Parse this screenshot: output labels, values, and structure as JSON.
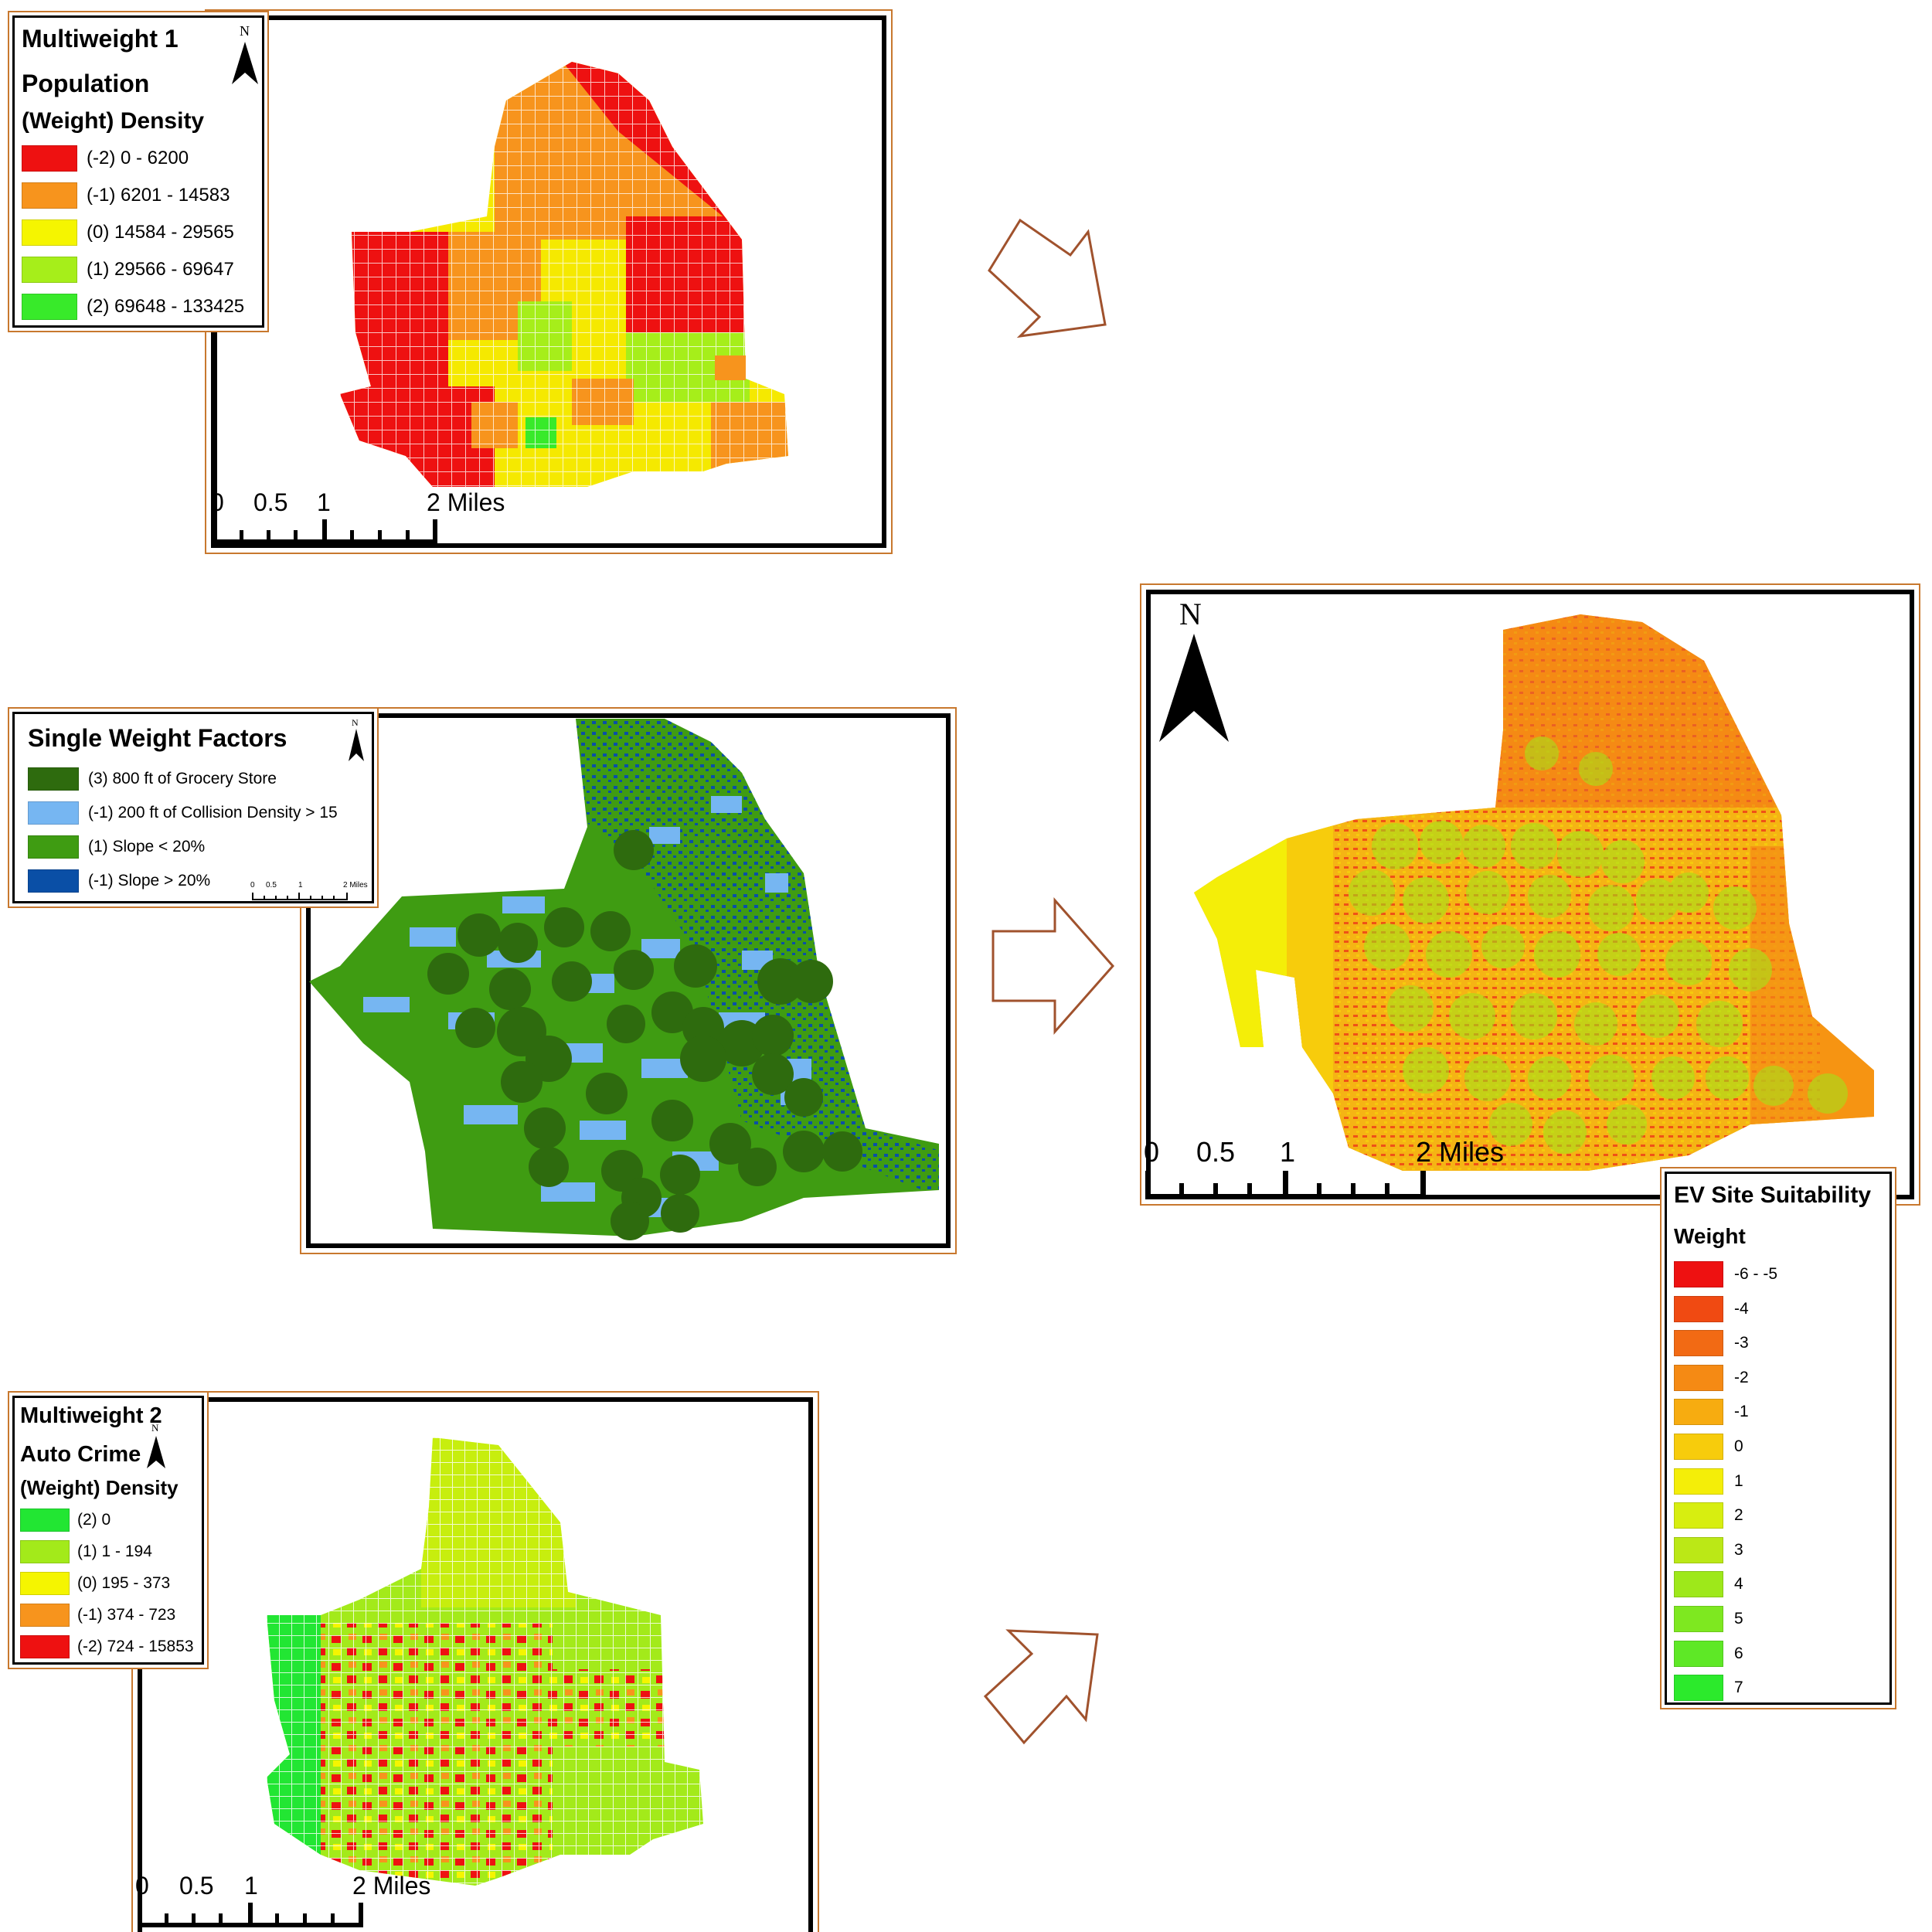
{
  "multiweight1": {
    "title": "Multiweight 1",
    "subtitle": "Population",
    "field": "(Weight) Density",
    "north": "N",
    "classes": [
      {
        "label": "(-2) 0 - 6200",
        "color": "#ee1111"
      },
      {
        "label": "(-1) 6201 - 14583",
        "color": "#f7941d"
      },
      {
        "label": "(0) 14584 - 29565",
        "color": "#f5f500"
      },
      {
        "label": "(1) 29566 - 69647",
        "color": "#a6ee1a"
      },
      {
        "label": "(2) 69648 - 133425",
        "color": "#38ea2a"
      }
    ],
    "scale": {
      "t0": "0",
      "t1": "0.5",
      "t2": "1",
      "t3": "2 Miles"
    }
  },
  "single": {
    "title": "Single Weight Factors",
    "north": "N",
    "classes": [
      {
        "label": "(3) 800 ft of Grocery Store",
        "color": "#2e6b0e"
      },
      {
        "label": "(-1) 200 ft of Collision Density > 15",
        "color": "#76b6f2"
      },
      {
        "label": "(1) Slope < 20%",
        "color": "#3f9c12"
      },
      {
        "label": "(-1) Slope > 20%",
        "color": "#0a4fa6"
      }
    ],
    "scale": {
      "t0": "0",
      "t1": "0.5",
      "t2": "1",
      "t3": "2 Miles"
    }
  },
  "multiweight2": {
    "title": "Multiweight 2",
    "subtitle": "Auto Crime",
    "field": "(Weight) Density",
    "north": "N",
    "classes": [
      {
        "label": "(2) 0",
        "color": "#22e633"
      },
      {
        "label": "(1) 1 - 194",
        "color": "#a3ea1a"
      },
      {
        "label": "(0) 195 - 373",
        "color": "#f5f500"
      },
      {
        "label": "(-1) 374 - 723",
        "color": "#f7941d"
      },
      {
        "label": "(-2) 724 - 15853",
        "color": "#ee1111"
      }
    ],
    "scale": {
      "t0": "0",
      "t1": "0.5",
      "t2": "1",
      "t3": "2 Miles"
    }
  },
  "result": {
    "north": "N",
    "title": "EV Site Suitability",
    "field": "Weight",
    "classes": [
      {
        "label": "-6 - -5",
        "color": "#ee1111"
      },
      {
        "label": "-4",
        "color": "#f04a12"
      },
      {
        "label": "-3",
        "color": "#f26a14"
      },
      {
        "label": "-2",
        "color": "#f58a14"
      },
      {
        "label": "-1",
        "color": "#f7ac10"
      },
      {
        "label": "0",
        "color": "#f7cc0c"
      },
      {
        "label": "1",
        "color": "#f4ee08"
      },
      {
        "label": "2",
        "color": "#d7ee10"
      },
      {
        "label": "3",
        "color": "#bbe816"
      },
      {
        "label": "4",
        "color": "#9ee81a"
      },
      {
        "label": "5",
        "color": "#7ee820"
      },
      {
        "label": "6",
        "color": "#5ee826"
      },
      {
        "label": "7",
        "color": "#2cea2c"
      }
    ],
    "scale": {
      "t0": "0",
      "t1": "0.5",
      "t2": "1",
      "t3": "2 Miles"
    }
  }
}
